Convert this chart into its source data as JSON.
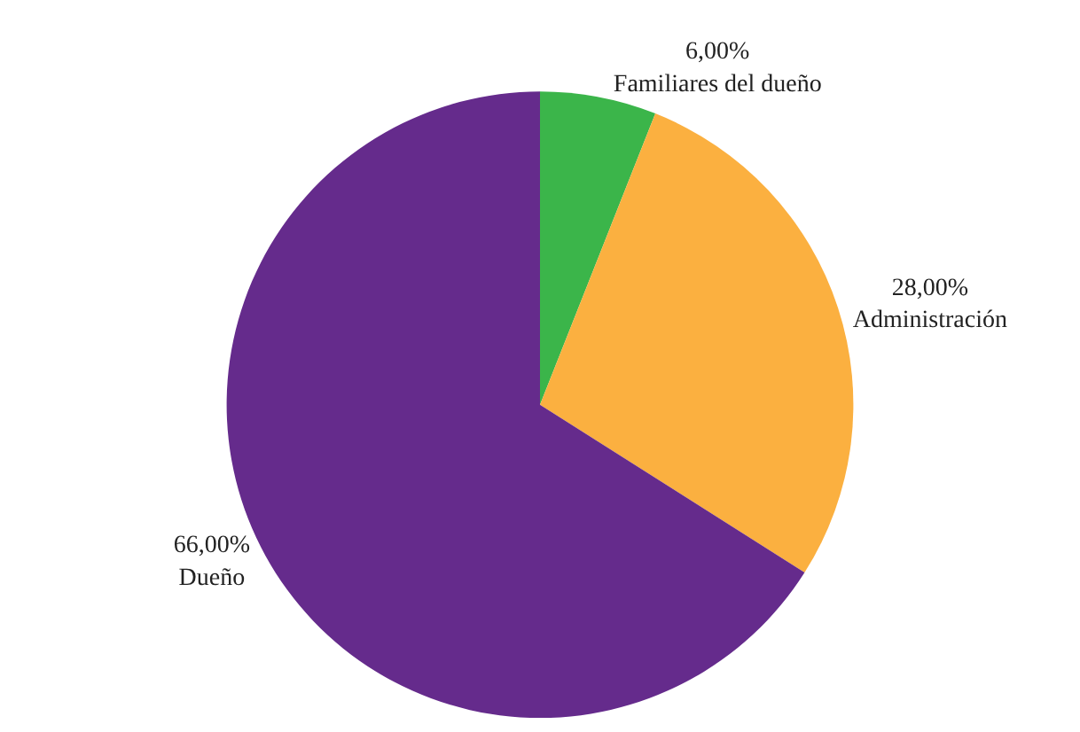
{
  "chart_data": {
    "type": "pie",
    "categories": [
      "Familiares del dueño",
      "Administración",
      "Dueño"
    ],
    "values": [
      6,
      28,
      66
    ],
    "value_labels": [
      "6,00%",
      "28,00%",
      "66,00%"
    ],
    "colors": [
      "#3bb54a",
      "#fbb040",
      "#652b8c"
    ],
    "legend": false
  }
}
